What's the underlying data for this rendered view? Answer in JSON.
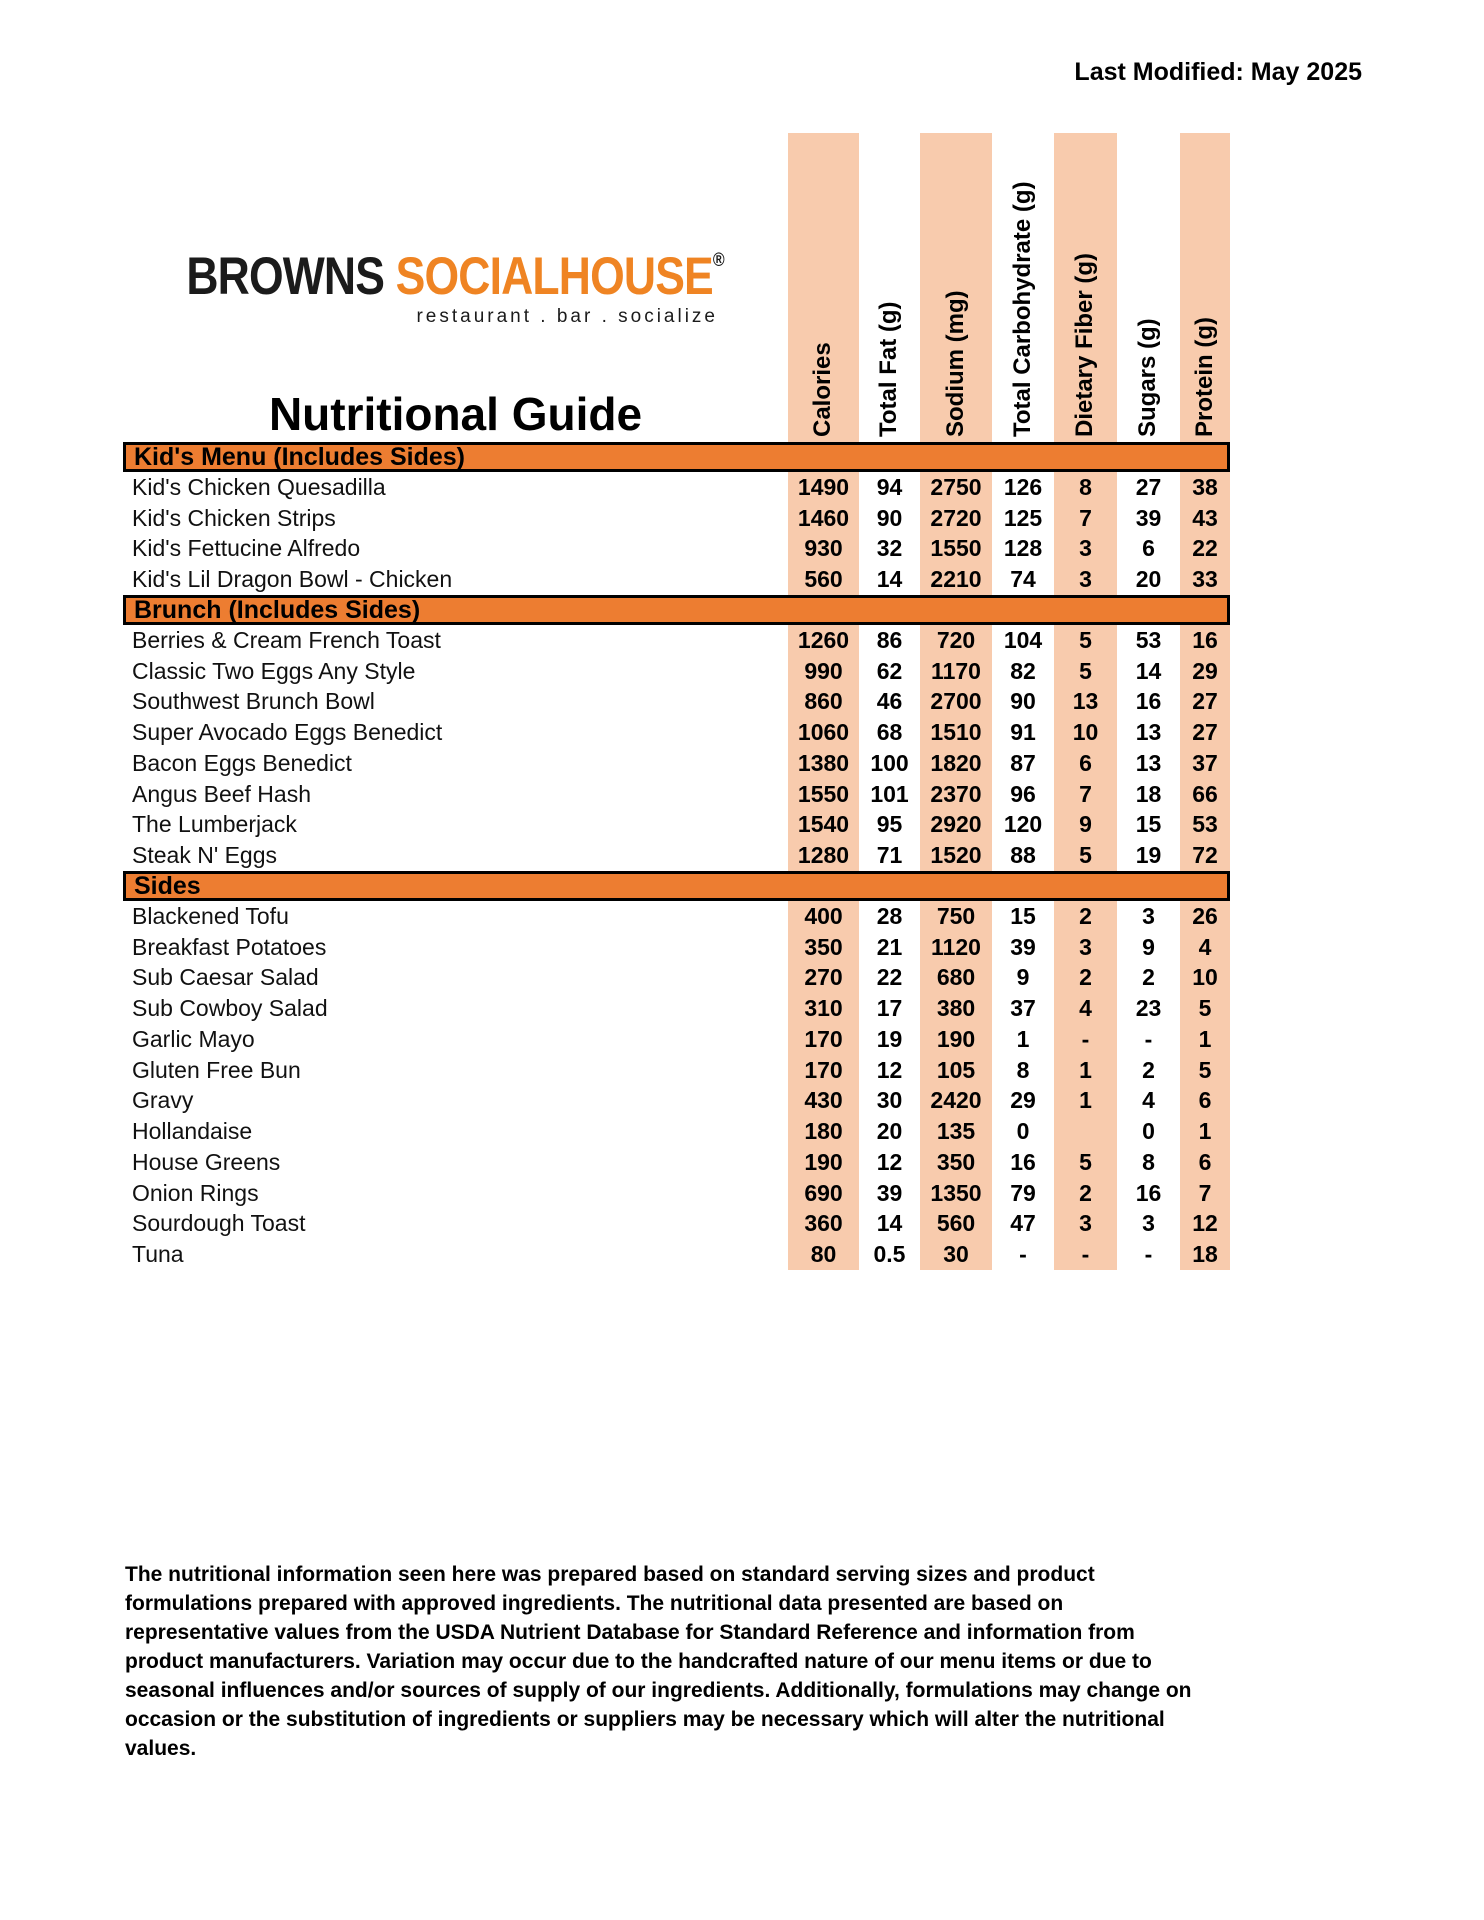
{
  "page": {
    "last_modified": "Last Modified: May 2025"
  },
  "logo": {
    "brand_left": "BROWNS",
    "brand_right": "SOCIALHOUSE",
    "registered_mark": "®",
    "tagline": "restaurant . bar . socialize"
  },
  "title": "Nutritional Guide",
  "columns": [
    "Calories",
    "Total Fat (g)",
    "Sodium (mg)",
    "Total Carbohydrate (g)",
    "Dietary Fiber (g)",
    "Sugars (g)",
    "Protein (g)"
  ],
  "sections": [
    {
      "name": "Kid's Menu (Includes Sides)",
      "items": [
        {
          "name": "Kid's Chicken Quesadilla",
          "values": [
            "1490",
            "94",
            "2750",
            "126",
            "8",
            "27",
            "38"
          ]
        },
        {
          "name": "Kid's Chicken Strips",
          "values": [
            "1460",
            "90",
            "2720",
            "125",
            "7",
            "39",
            "43"
          ]
        },
        {
          "name": "Kid's Fettucine Alfredo",
          "values": [
            "930",
            "32",
            "1550",
            "128",
            "3",
            "6",
            "22"
          ]
        },
        {
          "name": "Kid's Lil Dragon Bowl - Chicken",
          "values": [
            "560",
            "14",
            "2210",
            "74",
            "3",
            "20",
            "33"
          ]
        }
      ]
    },
    {
      "name": "Brunch (Includes Sides)",
      "items": [
        {
          "name": "Berries & Cream French Toast",
          "values": [
            "1260",
            "86",
            "720",
            "104",
            "5",
            "53",
            "16"
          ]
        },
        {
          "name": "Classic Two Eggs Any Style",
          "values": [
            "990",
            "62",
            "1170",
            "82",
            "5",
            "14",
            "29"
          ]
        },
        {
          "name": "Southwest Brunch Bowl",
          "values": [
            "860",
            "46",
            "2700",
            "90",
            "13",
            "16",
            "27"
          ]
        },
        {
          "name": "Super Avocado Eggs Benedict",
          "values": [
            "1060",
            "68",
            "1510",
            "91",
            "10",
            "13",
            "27"
          ]
        },
        {
          "name": "Bacon Eggs Benedict",
          "values": [
            "1380",
            "100",
            "1820",
            "87",
            "6",
            "13",
            "37"
          ]
        },
        {
          "name": "Angus Beef Hash",
          "values": [
            "1550",
            "101",
            "2370",
            "96",
            "7",
            "18",
            "66"
          ]
        },
        {
          "name": "The Lumberjack",
          "values": [
            "1540",
            "95",
            "2920",
            "120",
            "9",
            "15",
            "53"
          ]
        },
        {
          "name": "Steak N' Eggs",
          "values": [
            "1280",
            "71",
            "1520",
            "88",
            "5",
            "19",
            "72"
          ]
        }
      ]
    },
    {
      "name": "Sides",
      "items": [
        {
          "name": "Blackened Tofu",
          "values": [
            "400",
            "28",
            "750",
            "15",
            "2",
            "3",
            "26"
          ]
        },
        {
          "name": "Breakfast Potatoes",
          "values": [
            "350",
            "21",
            "1120",
            "39",
            "3",
            "9",
            "4"
          ]
        },
        {
          "name": "Sub Caesar Salad",
          "values": [
            "270",
            "22",
            "680",
            "9",
            "2",
            "2",
            "10"
          ]
        },
        {
          "name": "Sub Cowboy Salad",
          "values": [
            "310",
            "17",
            "380",
            "37",
            "4",
            "23",
            "5"
          ]
        },
        {
          "name": "Garlic Mayo",
          "values": [
            "170",
            "19",
            "190",
            "1",
            "-",
            "-",
            "1"
          ]
        },
        {
          "name": "Gluten Free Bun",
          "values": [
            "170",
            "12",
            "105",
            "8",
            "1",
            "2",
            "5"
          ]
        },
        {
          "name": "Gravy",
          "values": [
            "430",
            "30",
            "2420",
            "29",
            "1",
            "4",
            "6"
          ]
        },
        {
          "name": "Hollandaise",
          "values": [
            "180",
            "20",
            "135",
            "0",
            "",
            "0",
            "1"
          ]
        },
        {
          "name": "House Greens",
          "values": [
            "190",
            "12",
            "350",
            "16",
            "5",
            "8",
            "6"
          ]
        },
        {
          "name": "Onion Rings",
          "values": [
            "690",
            "39",
            "1350",
            "79",
            "2",
            "16",
            "7"
          ]
        },
        {
          "name": "Sourdough Toast",
          "values": [
            "360",
            "14",
            "560",
            "47",
            "3",
            "3",
            "12"
          ]
        },
        {
          "name": "Tuna",
          "values": [
            "80",
            "0.5",
            "30",
            "-",
            "-",
            "-",
            "18"
          ]
        }
      ]
    }
  ],
  "footer": "The nutritional information seen here was prepared based on standard serving sizes and product formulations prepared with approved ingredients. The nutritional data presented are based on representative values from the USDA Nutrient Database for Standard Reference and information from product manufacturers. Variation may occur due to the handcrafted nature of our menu items or due to seasonal influences and/or sources of supply of our ingredients. Additionally, formulations may change on occasion or the substitution of ingredients or suppliers may be necessary which will alter the nutritional values.",
  "colors": {
    "section_bar_orange": "#ED7D31",
    "column_band_peach": "#F8CBAD",
    "logo_orange": "#EF8423"
  }
}
